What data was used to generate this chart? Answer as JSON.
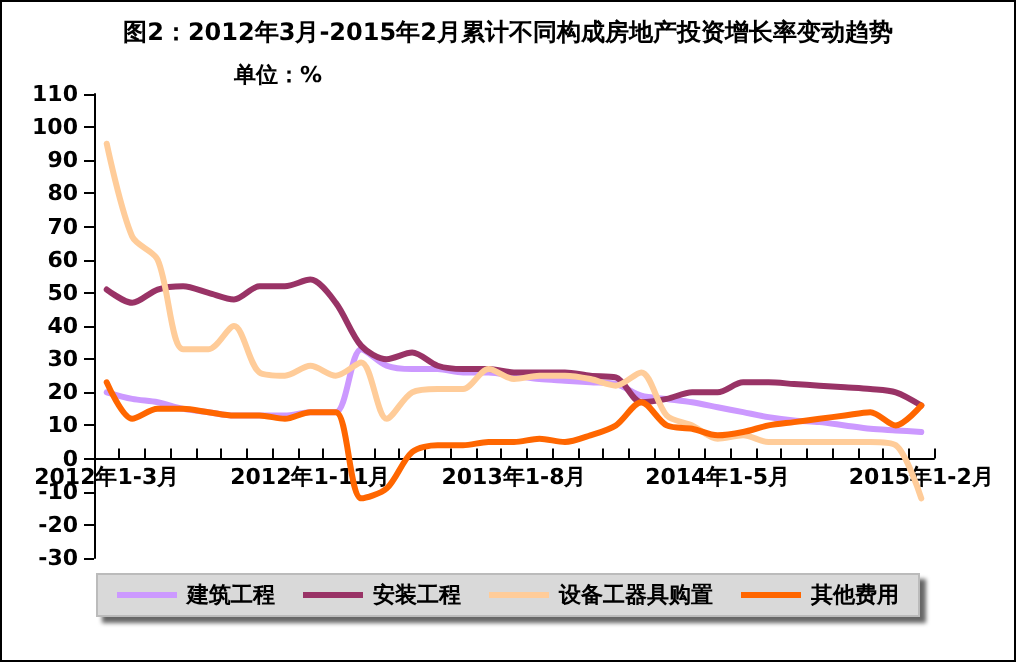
{
  "chart_data": {
    "type": "line",
    "title": "图2：2012年3月-2015年2月累计不同构成房地产投资增长率变动趋势",
    "ylabel": "单位：%",
    "categories": [
      "2012年1-3月",
      null,
      null,
      null,
      null,
      null,
      null,
      null,
      "2012年1-11月",
      null,
      null,
      null,
      null,
      null,
      null,
      null,
      "2013年1-8月",
      null,
      null,
      null,
      null,
      null,
      null,
      null,
      "2014年1-5月",
      null,
      null,
      null,
      null,
      null,
      null,
      null,
      "2015年1-2月"
    ],
    "series": [
      {
        "name": "建筑工程",
        "color": "#cc99ff",
        "values": [
          20,
          18,
          17,
          15,
          14,
          13,
          13,
          13,
          14,
          14,
          33,
          28,
          27,
          27,
          26,
          26,
          25,
          24,
          23.5,
          23,
          22.5,
          19,
          18,
          17,
          15.5,
          14,
          12.5,
          11.5,
          11,
          10,
          9,
          8.5,
          8
        ]
      },
      {
        "name": "安装工程",
        "color": "#993366",
        "values": [
          51,
          47,
          51,
          52,
          50,
          48,
          52,
          52,
          54,
          47,
          34,
          30,
          32,
          28,
          27,
          27,
          26,
          26,
          26,
          25,
          24.5,
          17,
          18,
          20,
          20,
          23,
          23,
          22.5,
          22,
          21.5,
          21,
          20,
          16
        ]
      },
      {
        "name": "设备工器具购置",
        "color": "#ffcc99",
        "values": [
          95,
          67,
          60,
          33,
          33,
          40,
          26,
          25,
          28,
          25,
          29,
          12,
          20,
          21,
          21,
          27,
          24,
          25,
          25,
          24,
          22,
          26,
          13,
          10,
          6,
          7,
          5,
          5,
          5,
          5,
          5,
          4,
          -12
        ]
      },
      {
        "name": "其他费用",
        "color": "#ff6600",
        "values": [
          23,
          12,
          15,
          15,
          14,
          13,
          13,
          12,
          14,
          14,
          -12,
          -9,
          2,
          4,
          4,
          5,
          5,
          6,
          5,
          7,
          10,
          17,
          10,
          9,
          7,
          8,
          10,
          11,
          12,
          13,
          14,
          10,
          16
        ]
      }
    ],
    "ylim": [
      -30,
      110
    ],
    "yticks": [
      -30,
      -20,
      -10,
      0,
      10,
      20,
      30,
      40,
      50,
      60,
      70,
      80,
      90,
      100,
      110
    ],
    "grid": false,
    "legend": "bottom",
    "marker": "none",
    "line_style": "solid"
  }
}
